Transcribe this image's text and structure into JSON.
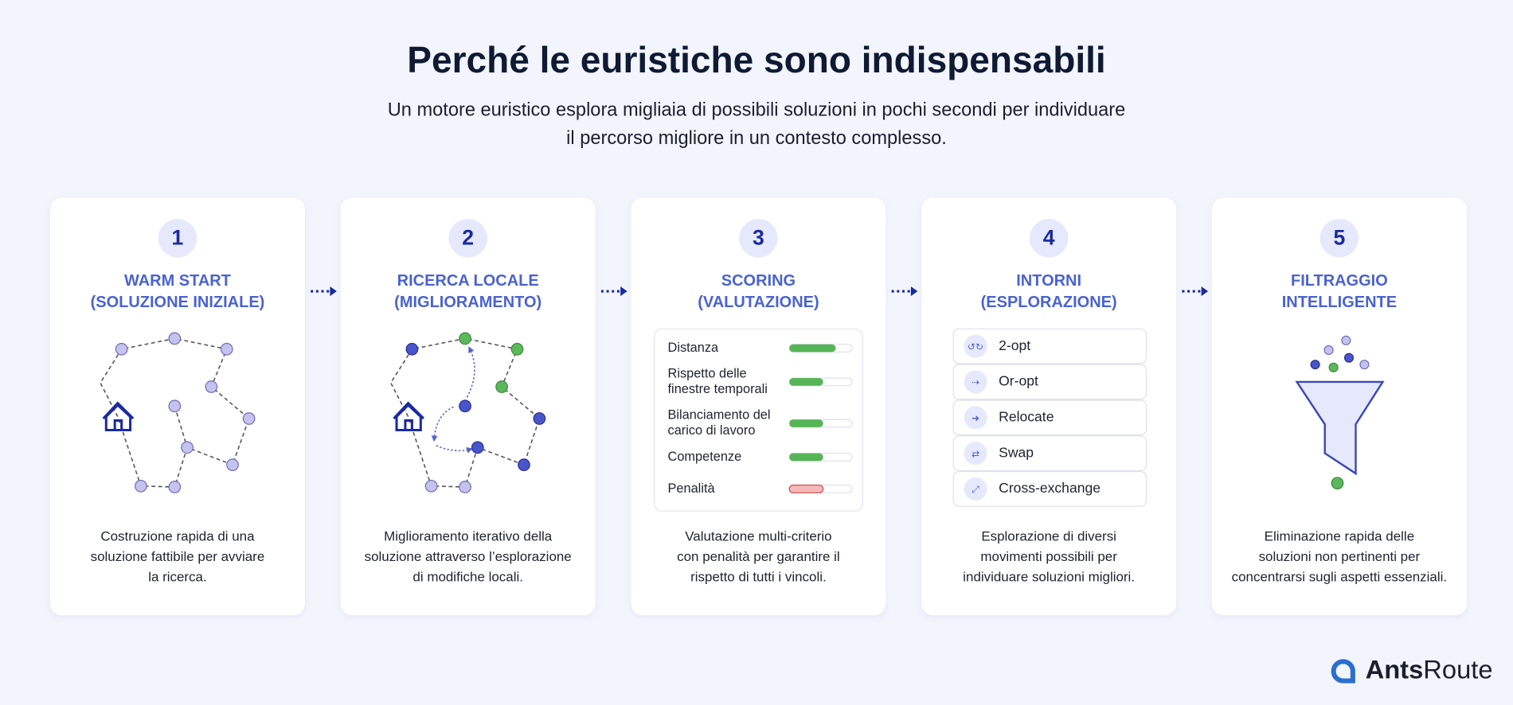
{
  "header": {
    "title": "Perché le euristiche sono indispensabili",
    "subtitle": [
      "Un motore euristico esplora migliaia di possibili soluzioni in pochi secondi per individuare",
      "il percorso migliore in un contesto complesso."
    ]
  },
  "steps": [
    {
      "number": 1,
      "heading": [
        "WARM START",
        "(SOLUZIONE INIZIALE)"
      ],
      "description": [
        "Costruzione rapida di una",
        "soluzione fattibile per avviare",
        "la ricerca."
      ]
    },
    {
      "number": 2,
      "heading": [
        "RICERCA LOCALE",
        "(MIGLIORAMENTO)"
      ],
      "description": [
        "Miglioramento iterativo della",
        "soluzione attraverso l’esplorazione",
        "di modifiche locali."
      ]
    },
    {
      "number": 3,
      "heading": [
        "SCORING",
        "(VALUTAZIONE)"
      ],
      "description": [
        "Valutazione multi-criterio",
        "con penalità per garantire il",
        "rispetto di tutti i vincoli."
      ]
    },
    {
      "number": 4,
      "heading": [
        "INTORNI",
        "(ESPLORAZIONE)"
      ],
      "description": [
        "Esplorazione di diversi",
        "movimenti possibili per",
        "individuare soluzioni migliori."
      ]
    },
    {
      "number": 5,
      "heading": [
        "FILTRAGGIO",
        "INTELLIGENTE"
      ],
      "description": [
        "Eliminazione rapida delle",
        "soluzioni non pertinenti per",
        "concentrarsi sugli aspetti essenziali."
      ]
    }
  ],
  "scoring": [
    {
      "label": [
        "Distanza"
      ],
      "score": 74
    },
    {
      "label": [
        "Rispetto delle",
        "finestre temporali"
      ],
      "score": 54
    },
    {
      "label": [
        "Bilanciamento del",
        "carico di lavoro"
      ],
      "score": 54
    },
    {
      "label": [
        "Competenze"
      ],
      "score": 54
    },
    {
      "label": [
        "Penalità"
      ],
      "score": 54
    }
  ],
  "moves": [
    "2-opt",
    "Or-opt",
    "Relocate",
    "Swap",
    "Cross-exchange"
  ],
  "logo": {
    "bold": "Ants",
    "regular": "Route"
  }
}
